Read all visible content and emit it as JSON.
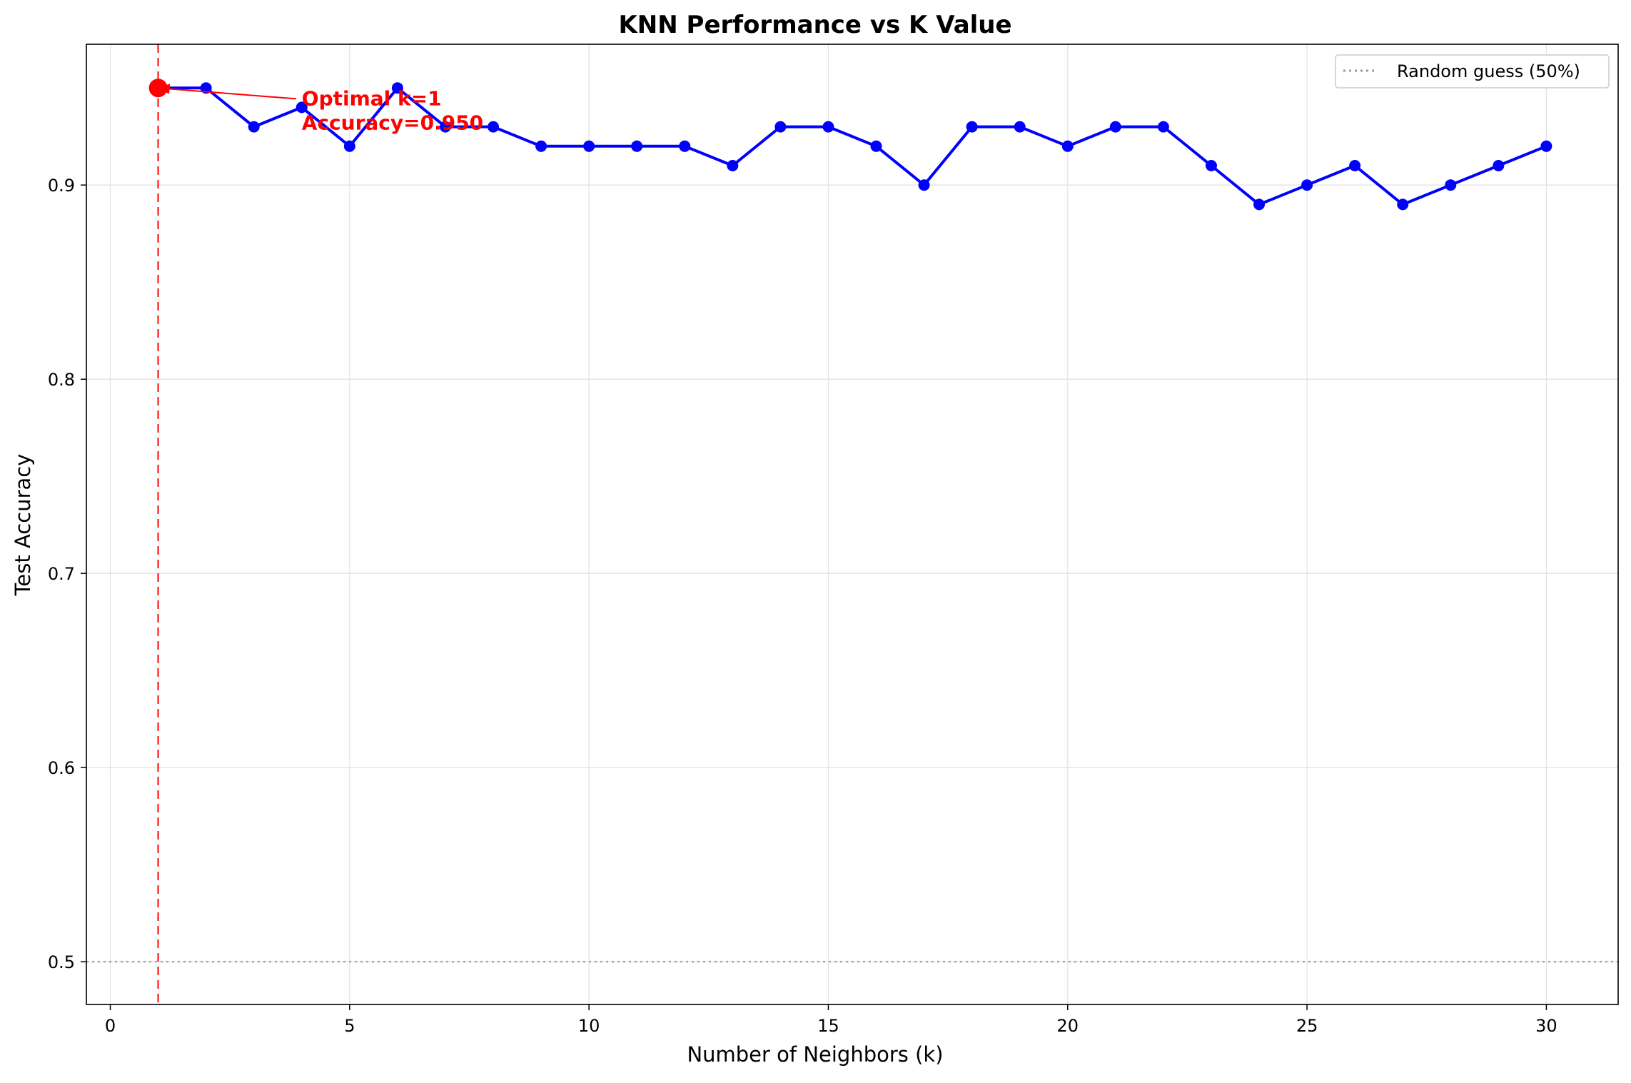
{
  "chart_data": {
    "type": "line",
    "title": "KNN Performance vs K Value",
    "xlabel": "Number of Neighbors (k)",
    "ylabel": "Test Accuracy",
    "xlim": [
      -0.5,
      31.5
    ],
    "ylim": [
      0.478,
      0.9725
    ],
    "xticks": [
      0,
      5,
      10,
      15,
      20,
      25,
      30
    ],
    "yticks": [
      0.5,
      0.6,
      0.7,
      0.8,
      0.9
    ],
    "grid": true,
    "legend_position": "top-right",
    "series": [
      {
        "x": [
          1,
          2,
          3,
          4,
          5,
          6,
          7,
          8,
          9,
          10,
          11,
          12,
          13,
          14,
          15,
          16,
          17,
          18,
          19,
          20,
          21,
          22,
          23,
          24,
          25,
          26,
          27,
          28,
          29,
          30
        ],
        "y": [
          0.95,
          0.95,
          0.93,
          0.94,
          0.92,
          0.95,
          0.93,
          0.93,
          0.92,
          0.92,
          0.92,
          0.92,
          0.91,
          0.93,
          0.93,
          0.92,
          0.9,
          0.93,
          0.93,
          0.92,
          0.93,
          0.93,
          0.91,
          0.89,
          0.9,
          0.91,
          0.89,
          0.9,
          0.91,
          0.92
        ],
        "color": "#0000ff",
        "marker": "circle"
      }
    ],
    "reference_lines": [
      {
        "orientation": "horizontal",
        "value": 0.5,
        "style": "dotted",
        "color": "#999999",
        "name": "Random guess (50%)"
      },
      {
        "orientation": "vertical",
        "value": 1,
        "style": "dashed",
        "color": "#ff0000"
      }
    ],
    "highlight_point": {
      "x": 1,
      "y": 0.95,
      "color": "#ff0000"
    },
    "annotation": {
      "lines": [
        "Optimal k=1",
        "Accuracy=0.950"
      ],
      "text_x": 4,
      "text_y": 0.94,
      "arrow_to_x": 1,
      "arrow_to_y": 0.95,
      "color": "#ff0000"
    },
    "legend": [
      {
        "label": "Random guess (50%)"
      }
    ]
  }
}
